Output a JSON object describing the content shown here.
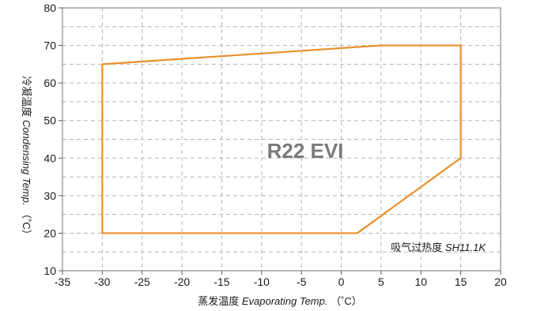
{
  "chart_data": {
    "type": "line",
    "title": "",
    "xlabel": {
      "cn": "蒸发温度",
      "en": "Evaporating Temp.",
      "unit": "（˚C）"
    },
    "ylabel": {
      "cn": "冷凝温度",
      "en": "Condensing Temp.",
      "unit": "（˚C）"
    },
    "xlim": [
      -35,
      20
    ],
    "ylim": [
      10,
      80
    ],
    "xticks": [
      -35,
      -30,
      -25,
      -20,
      -15,
      -10,
      -5,
      0,
      5,
      10,
      15,
      20
    ],
    "yticks": [
      10,
      20,
      30,
      40,
      50,
      60,
      70,
      80
    ],
    "grid": true,
    "annotations": {
      "refrigerant": "R22 EVI",
      "superheat_label": "吸气过热度",
      "superheat_value": "SH11.1K"
    },
    "series": [
      {
        "color": "#e8902a",
        "x": [
          -30,
          5,
          15,
          15,
          2,
          -30,
          -30
        ],
        "y": [
          65,
          70,
          70,
          40,
          20,
          20,
          65
        ]
      }
    ]
  }
}
